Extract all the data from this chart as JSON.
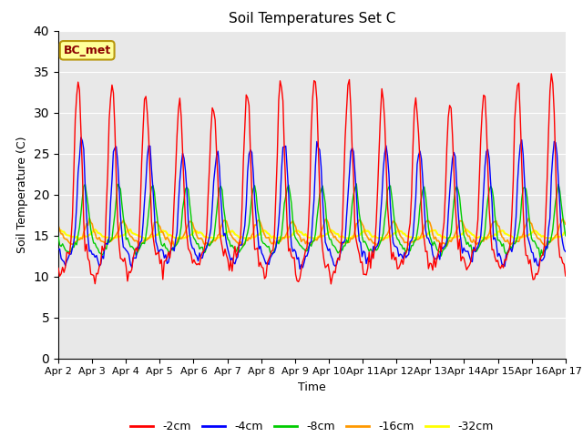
{
  "title": "Soil Temperatures Set C",
  "xlabel": "Time",
  "ylabel": "Soil Temperature (C)",
  "ylim": [
    0,
    40
  ],
  "yticks": [
    0,
    5,
    10,
    15,
    20,
    25,
    30,
    35,
    40
  ],
  "annotation": "BC_met",
  "colors": {
    "-2cm": "#ff0000",
    "-4cm": "#0000ff",
    "-8cm": "#00cc00",
    "-16cm": "#ff9900",
    "-32cm": "#ffff00"
  },
  "legend_labels": [
    "-2cm",
    "-4cm",
    "-8cm",
    "-16cm",
    "-32cm"
  ],
  "date_labels": [
    "Apr 2",
    "Apr 3",
    "Apr 4",
    "Apr 5",
    "Apr 6",
    "Apr 7",
    "Apr 8",
    "Apr 9",
    "Apr 10",
    "Apr 11",
    "Apr 12",
    "Apr 13",
    "Apr 14",
    "Apr 15",
    "Apr 16",
    "Apr 17"
  ],
  "n_days": 15,
  "hours_per_day": 24,
  "background_color": "#e8e8e8",
  "mean_temp": 15.0,
  "amplitudes_upper": {
    "2cm": 18.0,
    "4cm": 11.0,
    "8cm": 6.0,
    "16cm": 1.8,
    "32cm": 0.6
  },
  "amplitudes_lower": {
    "2cm": 7.5,
    "4cm": 5.5,
    "8cm": 3.5,
    "16cm": 1.8,
    "32cm": 0.6
  },
  "phase_shifts_hrs": {
    "2cm": 0.0,
    "4cm": 2.5,
    "8cm": 5.0,
    "16cm": 8.0,
    "32cm": 12.0
  },
  "peak_hour": 14
}
